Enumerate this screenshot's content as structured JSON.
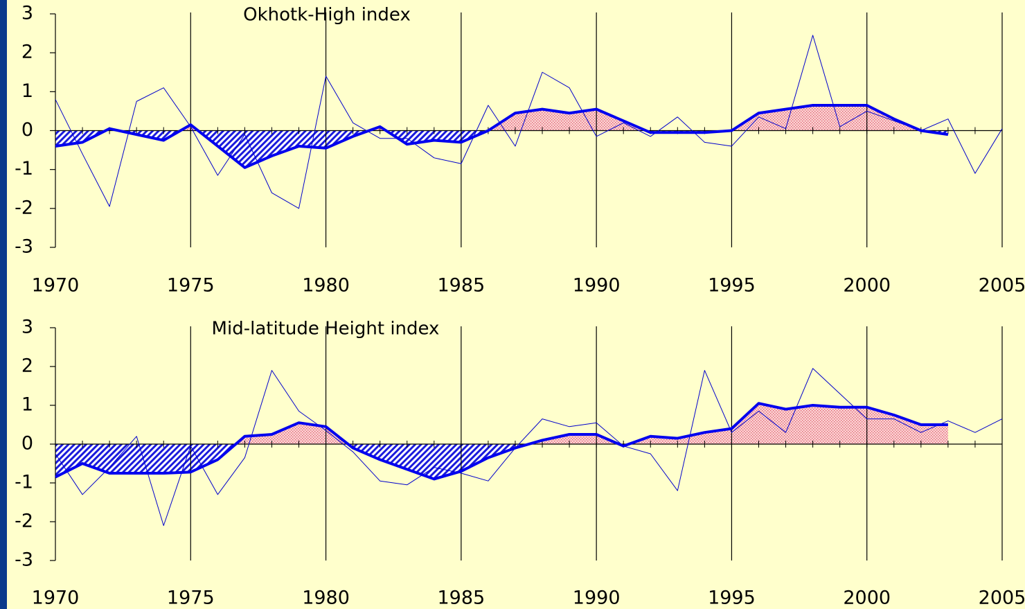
{
  "chart_data": [
    {
      "type": "line",
      "title": "Okhotk-High index",
      "x": [
        1970,
        1971,
        1972,
        1973,
        1974,
        1975,
        1976,
        1977,
        1978,
        1979,
        1980,
        1981,
        1982,
        1983,
        1984,
        1985,
        1986,
        1987,
        1988,
        1989,
        1990,
        1991,
        1992,
        1993,
        1994,
        1995,
        1996,
        1997,
        1998,
        1999,
        2000,
        2001,
        2002,
        2003,
        2004,
        2005
      ],
      "xlim": [
        1970,
        2005
      ],
      "xticks": [
        1970,
        1975,
        1980,
        1985,
        1990,
        1995,
        2000,
        2005
      ],
      "ylim": [
        -3,
        3
      ],
      "yticks": [
        -3,
        -2,
        -1,
        0,
        1,
        2,
        3
      ],
      "grid_x": true,
      "fill_positive_color": "#f4a0a8",
      "fill_negative_color": "#1a1adc",
      "series": [
        {
          "color": "#0000cc",
          "line_width": 1,
          "values": [
            0.8,
            -0.6,
            -1.95,
            0.75,
            1.1,
            0.1,
            -1.15,
            -0.1,
            -1.6,
            -2.0,
            1.4,
            0.2,
            -0.2,
            -0.2,
            -0.7,
            -0.85,
            0.65,
            -0.4,
            1.5,
            1.1,
            -0.15,
            0.2,
            -0.15,
            0.35,
            -0.3,
            -0.4,
            0.35,
            0.05,
            2.45,
            0.1,
            0.5,
            0.25,
            0.0,
            0.3,
            -1.1,
            0.05
          ]
        },
        {
          "color": "#0000ee",
          "line_width": 4,
          "filled": true,
          "values": [
            -0.4,
            -0.3,
            0.05,
            -0.1,
            -0.25,
            0.15,
            -0.4,
            -0.95,
            -0.65,
            -0.4,
            -0.45,
            -0.15,
            0.1,
            -0.35,
            -0.25,
            -0.3,
            0.0,
            0.45,
            0.55,
            0.45,
            0.55,
            0.25,
            -0.05,
            -0.05,
            -0.05,
            0.0,
            0.45,
            0.55,
            0.65,
            0.65,
            0.65,
            0.3,
            0.0,
            -0.1,
            null,
            null
          ]
        }
      ]
    },
    {
      "type": "line",
      "title": "Mid-latitude Height index",
      "x": [
        1970,
        1971,
        1972,
        1973,
        1974,
        1975,
        1976,
        1977,
        1978,
        1979,
        1980,
        1981,
        1982,
        1983,
        1984,
        1985,
        1986,
        1987,
        1988,
        1989,
        1990,
        1991,
        1992,
        1993,
        1994,
        1995,
        1996,
        1997,
        1998,
        1999,
        2000,
        2001,
        2002,
        2003,
        2004,
        2005
      ],
      "xlim": [
        1970,
        2005
      ],
      "xticks": [
        1970,
        1975,
        1980,
        1985,
        1990,
        1995,
        2000,
        2005
      ],
      "ylim": [
        -3,
        3
      ],
      "yticks": [
        -3,
        -2,
        -1,
        0,
        1,
        2,
        3
      ],
      "grid_x": true,
      "fill_positive_color": "#f4a0a8",
      "fill_negative_color": "#1a1adc",
      "series": [
        {
          "color": "#0000cc",
          "line_width": 1,
          "values": [
            -0.25,
            -1.3,
            -0.6,
            0.2,
            -2.1,
            -0.05,
            -1.3,
            -0.35,
            1.9,
            0.85,
            0.35,
            -0.2,
            -0.95,
            -1.05,
            -0.6,
            -0.75,
            -0.95,
            -0.1,
            0.65,
            0.45,
            0.55,
            -0.05,
            -0.25,
            -1.2,
            1.9,
            0.3,
            0.85,
            0.3,
            1.95,
            1.3,
            0.65,
            0.65,
            0.3,
            0.6,
            0.3,
            0.65
          ]
        },
        {
          "color": "#0000ee",
          "line_width": 4,
          "filled": true,
          "values": [
            -0.85,
            -0.5,
            -0.75,
            -0.75,
            -0.75,
            -0.72,
            -0.4,
            0.2,
            0.25,
            0.55,
            0.45,
            -0.1,
            -0.4,
            -0.65,
            -0.9,
            -0.7,
            -0.35,
            -0.1,
            0.1,
            0.25,
            0.25,
            -0.05,
            0.2,
            0.15,
            0.3,
            0.4,
            1.05,
            0.9,
            1.0,
            0.95,
            0.95,
            0.75,
            0.5,
            0.5,
            null,
            null
          ]
        }
      ]
    }
  ]
}
